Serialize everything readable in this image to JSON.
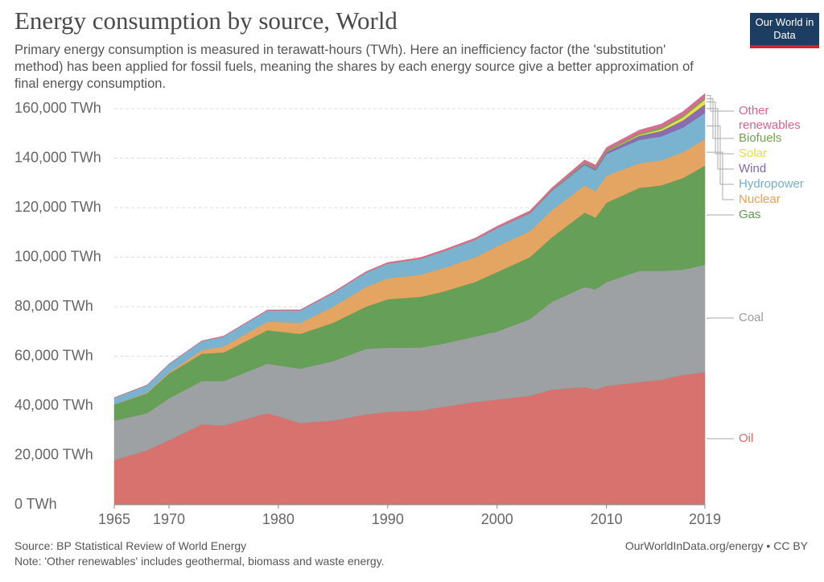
{
  "chart_data": {
    "type": "stacked-area",
    "title": "Energy consumption by source, World",
    "subtitle": "Primary energy consumption is measured in terawatt-hours (TWh). Here an inefficiency factor (the 'substitution' method) has been applied for fossil fuels, meaning the shares by each energy source give a better approximation of final energy consumption.",
    "logo": "Our World in Data",
    "source": "Source: BP Statistical Review of World Energy",
    "note": "Note: 'Other renewables' includes geothermal, biomass and waste energy.",
    "credit": "OurWorldInData.org/energy • CC BY",
    "x": [
      1965,
      1968,
      1970,
      1973,
      1975,
      1979,
      1982,
      1985,
      1988,
      1990,
      1993,
      1995,
      1998,
      2000,
      2003,
      2005,
      2008,
      2009,
      2010,
      2013,
      2015,
      2017,
      2019
    ],
    "xlim": [
      1965,
      2019
    ],
    "xticks": [
      1965,
      1970,
      1980,
      1990,
      2000,
      2010,
      2019
    ],
    "ylim": [
      0,
      160000
    ],
    "yticks": [
      {
        "value": 0,
        "label": "0 TWh"
      },
      {
        "value": 20000,
        "label": "20,000 TWh"
      },
      {
        "value": 40000,
        "label": "40,000 TWh"
      },
      {
        "value": 60000,
        "label": "60,000 TWh"
      },
      {
        "value": 80000,
        "label": "80,000 TWh"
      },
      {
        "value": 100000,
        "label": "100,000 TWh"
      },
      {
        "value": 120000,
        "label": "120,000 TWh"
      },
      {
        "value": 140000,
        "label": "140,000 TWh"
      },
      {
        "value": 160000,
        "label": "160,000 TWh"
      }
    ],
    "grid": true,
    "series": [
      {
        "name": "Oil",
        "color": "#d66a67",
        "values": [
          18000,
          22000,
          26000,
          32500,
          32000,
          37000,
          33000,
          34000,
          36500,
          37500,
          38000,
          39500,
          41500,
          42500,
          44000,
          46500,
          47500,
          46500,
          48000,
          49500,
          50500,
          52500,
          53500
        ]
      },
      {
        "name": "Coal",
        "color": "#999c9e",
        "values": [
          16000,
          15000,
          17000,
          17500,
          18000,
          20000,
          22000,
          24000,
          26500,
          26000,
          25500,
          25500,
          26500,
          27500,
          31000,
          35500,
          40500,
          40500,
          42000,
          45000,
          44000,
          42500,
          43500
        ]
      },
      {
        "name": "Gas",
        "color": "#5e9a4e",
        "values": [
          6500,
          8000,
          10000,
          11000,
          11500,
          13500,
          14000,
          15500,
          17000,
          19500,
          20500,
          21000,
          22000,
          24000,
          25000,
          26000,
          30000,
          29000,
          32000,
          33500,
          34500,
          37000,
          40000
        ]
      },
      {
        "name": "Nuclear",
        "color": "#e4a05a",
        "values": [
          100,
          300,
          500,
          1500,
          2500,
          3500,
          4500,
          6500,
          8000,
          8500,
          9000,
          9500,
          10000,
          10500,
          10500,
          11000,
          11000,
          10700,
          11000,
          10000,
          10200,
          10400,
          10800
        ]
      },
      {
        "name": "Hydropower",
        "color": "#72afcd",
        "values": [
          2600,
          3000,
          3300,
          3600,
          4000,
          4500,
          5000,
          5500,
          5700,
          5900,
          6300,
          6700,
          7000,
          7200,
          7200,
          7700,
          8300,
          8300,
          8700,
          9400,
          9600,
          10000,
          10500
        ]
      },
      {
        "name": "Wind",
        "color": "#8266ad",
        "values": [
          0,
          0,
          0,
          0,
          0,
          0,
          0,
          0,
          0,
          0,
          0,
          10,
          30,
          80,
          180,
          280,
          580,
          730,
          900,
          1700,
          2200,
          2900,
          3500
        ]
      },
      {
        "name": "Solar",
        "color": "#ecdc3e",
        "values": [
          0,
          0,
          0,
          0,
          0,
          0,
          0,
          0,
          0,
          0,
          0,
          0,
          0,
          0,
          0,
          0,
          30,
          50,
          90,
          350,
          660,
          1200,
          1800
        ]
      },
      {
        "name": "Biofuels",
        "color": "#74a24a",
        "values": [
          0,
          0,
          0,
          0,
          0,
          0,
          0,
          50,
          60,
          70,
          80,
          90,
          100,
          110,
          150,
          230,
          460,
          510,
          590,
          680,
          760,
          810,
          880
        ]
      },
      {
        "name": "Other renewables",
        "color": "#d9638f",
        "values": [
          60,
          80,
          100,
          130,
          160,
          200,
          260,
          330,
          390,
          430,
          480,
          540,
          600,
          640,
          730,
          810,
          930,
          970,
          1060,
          1230,
          1370,
          1550,
          1650
        ]
      }
    ]
  }
}
